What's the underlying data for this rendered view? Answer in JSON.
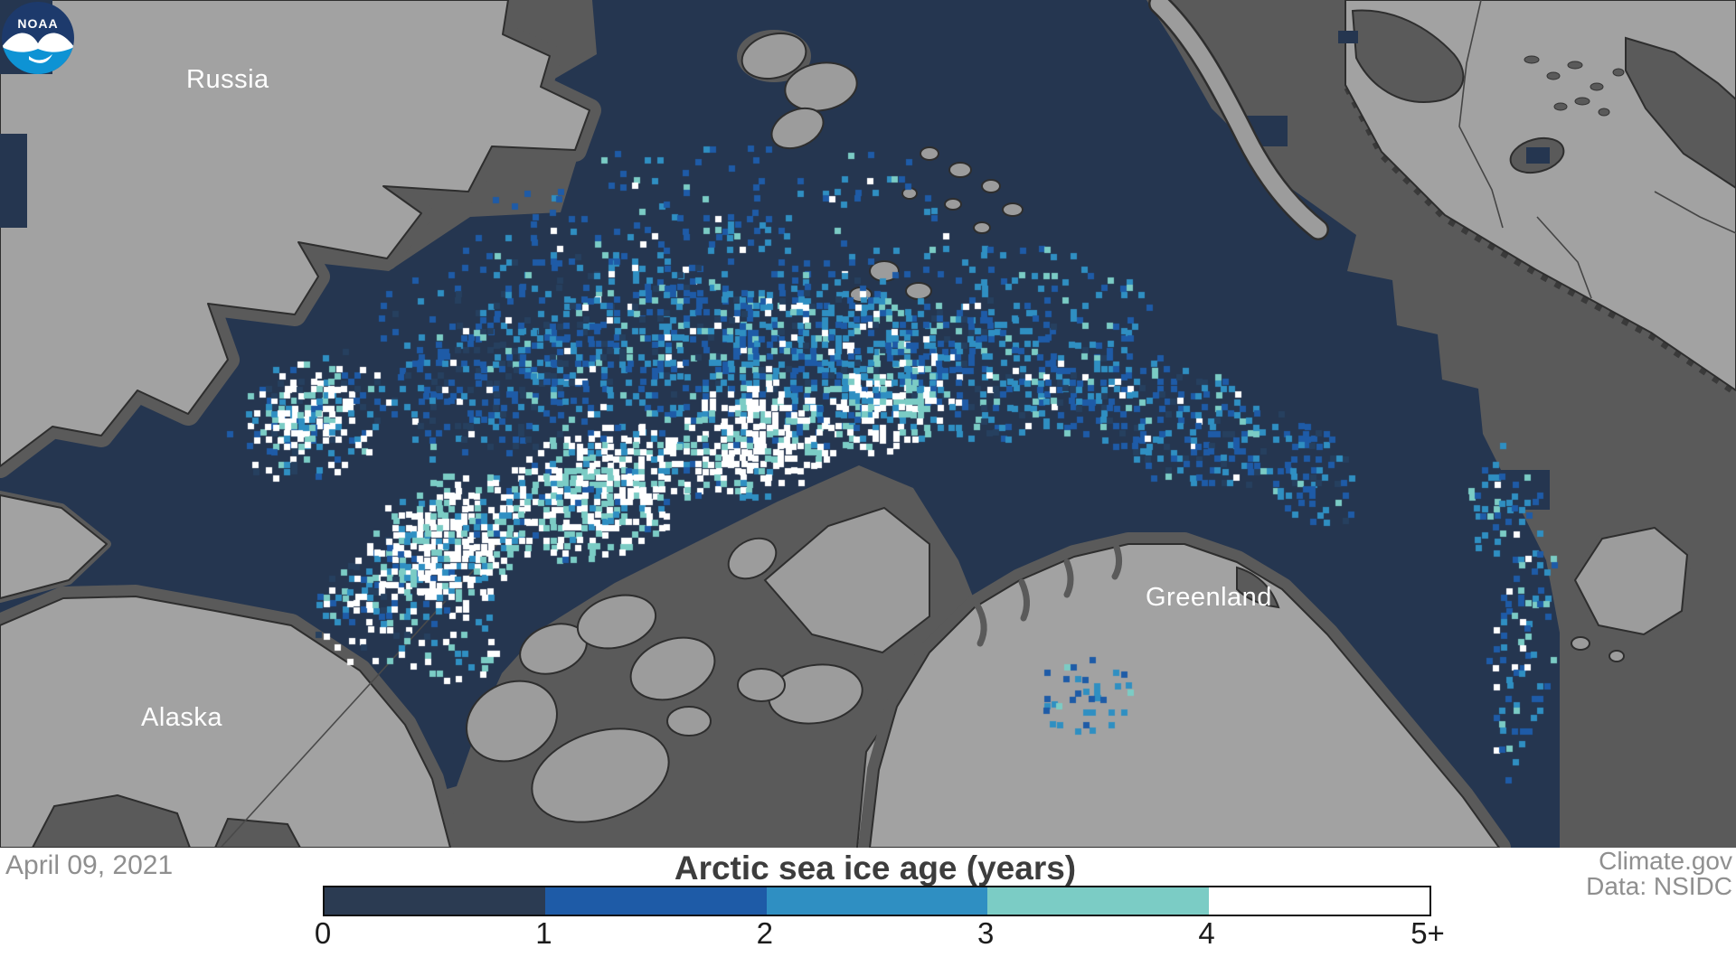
{
  "map": {
    "labels": [
      {
        "text": "Russia"
      },
      {
        "text": "Alaska"
      },
      {
        "text": "Greenland"
      }
    ],
    "colors": {
      "open_ocean_gray": "#5a5a5a",
      "ice_basin_navy": "#253650",
      "land_light": "#a2a2a2",
      "island_gray": "#9c9c9c",
      "coast_outline": "#2e2e2e"
    }
  },
  "legend": {
    "title": "Arctic sea ice age (years)",
    "ticks": [
      "0",
      "1",
      "2",
      "3",
      "4",
      "5+"
    ],
    "colors": [
      "#2b3b52",
      "#1e5ba7",
      "#2f8fc2",
      "#7bccc5",
      "#ffffff"
    ]
  },
  "footer": {
    "date": "April 09, 2021",
    "credit_line1": "Climate.gov",
    "credit_line2": "Data: NSIDC",
    "background": "#ffffff",
    "muted_text_color": "#8f8f8f",
    "title_color": "#3d3d3d"
  },
  "noaa_logo": {
    "text": "NOAA",
    "navy": "#1d3a6c",
    "blue": "#0e93d4"
  },
  "ice_palette": {
    "first_year_fleck": "#26405f",
    "second_year": "#1e5ba7",
    "third_year": "#2f8fc2",
    "fourth_year": "#7bccc5",
    "five_plus": "#ffffff"
  }
}
